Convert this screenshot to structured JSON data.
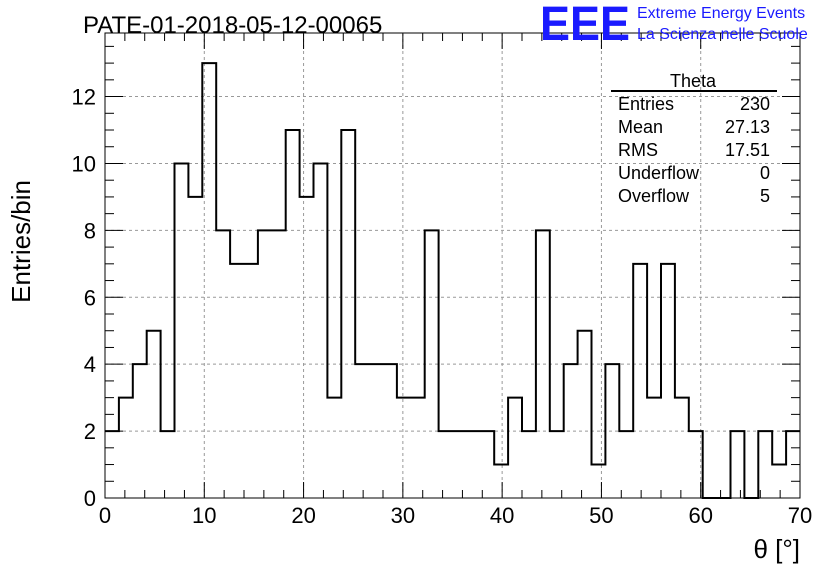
{
  "header": {
    "run_title": "PATE-01-2018-05-12-00065",
    "logo_text": "EEE",
    "org_line1": "Extreme Energy Events",
    "org_line2": "La Scienza nelle Scuole"
  },
  "colors": {
    "brand": "#1a1aff",
    "frame": "#000000",
    "grid": "#999999"
  },
  "stats_box": {
    "title": "Theta",
    "rows": [
      {
        "label": "Entries",
        "value": "230"
      },
      {
        "label": "Mean",
        "value": "27.13"
      },
      {
        "label": "RMS",
        "value": "17.51"
      },
      {
        "label": "Underflow",
        "value": "0"
      },
      {
        "label": "Overflow",
        "value": "5"
      }
    ]
  },
  "chart_data": {
    "type": "histogram",
    "title": "PATE-01-2018-05-12-00065",
    "xlabel": "θ [°]",
    "ylabel": "Entries/bin",
    "xlim": [
      0,
      70
    ],
    "ylim": [
      0,
      13.9
    ],
    "x_ticks": [
      0,
      10,
      20,
      30,
      40,
      50,
      60,
      70
    ],
    "y_ticks": [
      0,
      2,
      4,
      6,
      8,
      10,
      12
    ],
    "grid": true,
    "bin_width": 1.4,
    "bin_start": 0,
    "counts": [
      2,
      3,
      4,
      5,
      2,
      10,
      9,
      13,
      8,
      7,
      7,
      8,
      8,
      11,
      9,
      10,
      3,
      11,
      4,
      4,
      4,
      3,
      3,
      8,
      2,
      2,
      2,
      2,
      1,
      3,
      2,
      8,
      2,
      4,
      5,
      1,
      4,
      2,
      7,
      3,
      7,
      3,
      2,
      0,
      0,
      2,
      0,
      2,
      1,
      2
    ]
  }
}
